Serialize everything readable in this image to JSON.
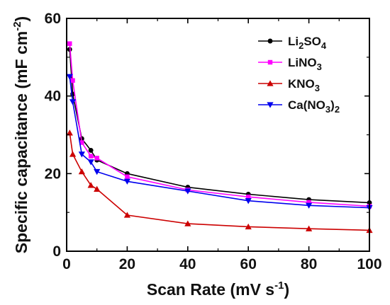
{
  "chart_data": {
    "type": "line",
    "xlabel": "Scan Rate (mV s-1)",
    "ylabel": "Specific capacitance (mF cm-2)",
    "xlim": [
      0,
      100
    ],
    "ylim": [
      0,
      60
    ],
    "x_ticks": [
      0,
      20,
      40,
      60,
      80,
      100
    ],
    "y_ticks": [
      0,
      20,
      40,
      60
    ],
    "grid": false,
    "legend_position": "top-right",
    "x": [
      1,
      2,
      5,
      8,
      10,
      20,
      40,
      60,
      80,
      100
    ],
    "series": [
      {
        "name": "Li2SO4",
        "color": "#000000",
        "marker": "circle",
        "values": [
          52,
          40.5,
          29,
          26,
          23.5,
          20,
          16.5,
          14.7,
          13.3,
          12.5
        ]
      },
      {
        "name": "LiNO3",
        "color": "#ff00ff",
        "marker": "square",
        "values": [
          53.5,
          44,
          28,
          24.5,
          24,
          19.2,
          15.8,
          14,
          12.6,
          11.6
        ]
      },
      {
        "name": "KNO3",
        "color": "#cc0000",
        "marker": "triangle-up",
        "values": [
          30.5,
          25,
          20.5,
          17,
          16,
          9.3,
          7.1,
          6.3,
          5.8,
          5.4
        ]
      },
      {
        "name": "Ca(NO3)2",
        "color": "#0000ee",
        "marker": "triangle-down",
        "values": [
          45,
          38.5,
          25,
          23,
          20.5,
          18,
          15.5,
          13,
          11.8,
          11.2
        ]
      }
    ]
  }
}
